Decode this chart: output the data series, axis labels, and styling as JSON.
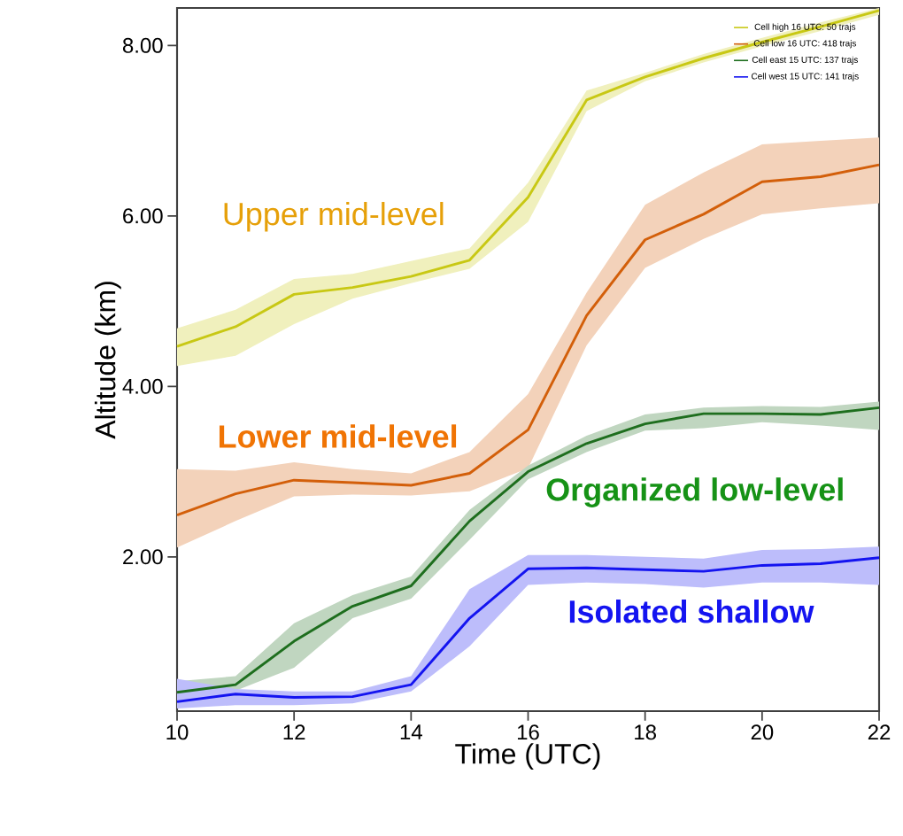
{
  "chart_data": {
    "type": "line",
    "xlabel": "Time (UTC)",
    "ylabel": "Altitude (km)",
    "x": [
      10,
      11,
      12,
      13,
      14,
      15,
      16,
      17,
      18,
      19,
      20,
      21,
      22
    ],
    "xlim": [
      10,
      22
    ],
    "xticks": [
      10,
      12,
      14,
      16,
      18,
      20,
      22
    ],
    "ylim": [
      0.19,
      8.44
    ],
    "yticks": [
      {
        "value": 2,
        "label": "2.00"
      },
      {
        "value": 4,
        "label": "4.00"
      },
      {
        "value": 6,
        "label": "6.00"
      },
      {
        "value": 8,
        "label": "8.00"
      }
    ],
    "legend": "top right",
    "series": [
      {
        "name": "Cell high 16 UTC: 50 trajs",
        "color": "#c8c814",
        "values": [
          4.47,
          4.7,
          5.08,
          5.16,
          5.29,
          5.48,
          6.22,
          7.36,
          7.63,
          7.85,
          8.04,
          8.22,
          8.41
        ],
        "lower": [
          4.24,
          4.36,
          4.73,
          5.03,
          5.21,
          5.38,
          5.93,
          7.23,
          7.58,
          7.8,
          7.99,
          8.17,
          8.36
        ],
        "upper": [
          4.68,
          4.9,
          5.26,
          5.32,
          5.47,
          5.62,
          6.39,
          7.47,
          7.68,
          7.9,
          8.09,
          8.27,
          8.44
        ]
      },
      {
        "name": "Cell low 16 UTC: 418 trajs",
        "color": "#d35f0a",
        "values": [
          2.49,
          2.74,
          2.9,
          2.87,
          2.84,
          2.98,
          3.49,
          4.83,
          5.72,
          6.02,
          6.4,
          6.46,
          6.6
        ],
        "lower": [
          2.11,
          2.42,
          2.71,
          2.73,
          2.72,
          2.77,
          3.04,
          4.48,
          5.39,
          5.73,
          6.02,
          6.09,
          6.15
        ],
        "upper": [
          3.03,
          3.01,
          3.11,
          3.03,
          2.98,
          3.23,
          3.91,
          5.1,
          6.13,
          6.51,
          6.84,
          6.88,
          6.92
        ]
      },
      {
        "name": "Cell east 15 UTC: 137 trajs",
        "color": "#1e6e1e",
        "values": [
          0.41,
          0.5,
          1.01,
          1.42,
          1.66,
          2.42,
          3.0,
          3.33,
          3.56,
          3.68,
          3.68,
          3.67,
          3.75
        ],
        "lower": [
          0.35,
          0.43,
          0.7,
          1.28,
          1.51,
          2.2,
          2.91,
          3.23,
          3.48,
          3.51,
          3.58,
          3.54,
          3.49
        ],
        "upper": [
          0.54,
          0.6,
          1.22,
          1.55,
          1.77,
          2.55,
          3.07,
          3.42,
          3.67,
          3.75,
          3.77,
          3.76,
          3.82
        ]
      },
      {
        "name": "Cell west 15 UTC: 141 trajs",
        "color": "#1414f0",
        "values": [
          0.3,
          0.39,
          0.35,
          0.36,
          0.5,
          1.28,
          1.86,
          1.87,
          1.85,
          1.83,
          1.9,
          1.92,
          1.99
        ],
        "lower": [
          0.22,
          0.26,
          0.26,
          0.28,
          0.42,
          0.95,
          1.67,
          1.7,
          1.68,
          1.64,
          1.7,
          1.7,
          1.67
        ],
        "upper": [
          0.57,
          0.45,
          0.42,
          0.42,
          0.6,
          1.62,
          2.02,
          2.02,
          2.0,
          1.98,
          2.08,
          2.09,
          2.12
        ]
      }
    ],
    "annotations": [
      "Upper mid-level",
      "Lower mid-level",
      "Organized low-level",
      "Isolated shallow"
    ]
  }
}
